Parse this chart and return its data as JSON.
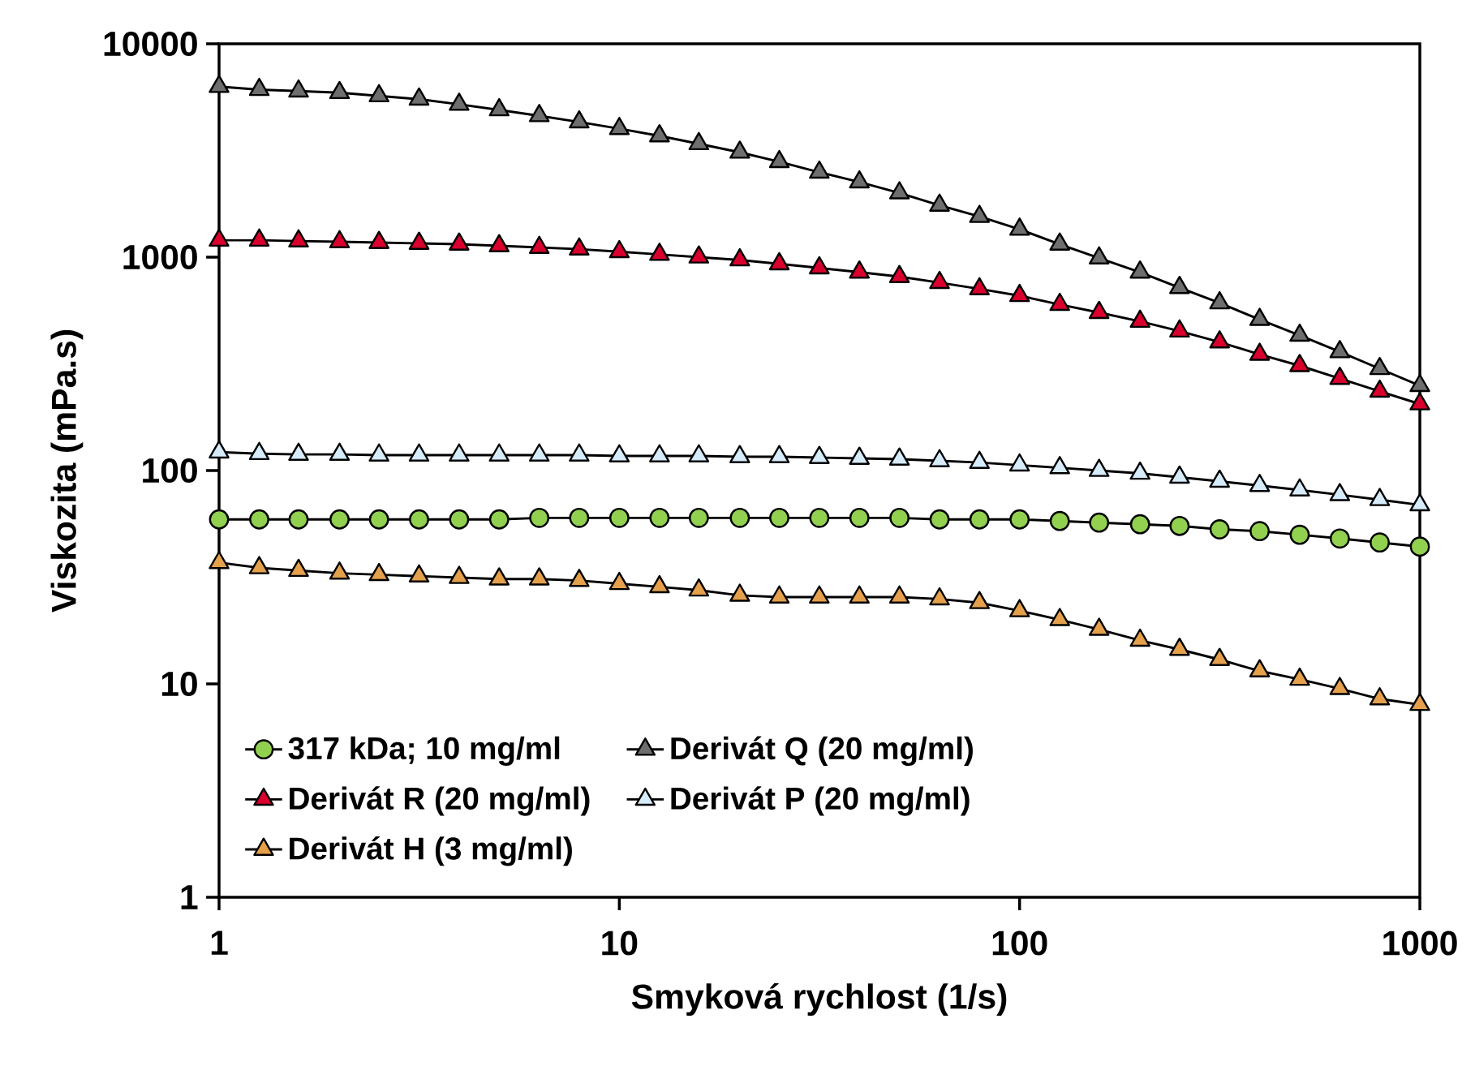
{
  "chart_data": {
    "type": "line",
    "xlabel": "Smyková rychlost (1/s)",
    "ylabel": "Viskozita (mPa.s)",
    "log": "xy",
    "grid": false,
    "legend": "bottom left",
    "xlim": [
      1,
      1000
    ],
    "ylim": [
      1,
      10000
    ],
    "xticks": [
      1,
      10,
      100,
      1000
    ],
    "yticks": [
      1,
      10,
      100,
      1000,
      10000
    ],
    "x": [
      1,
      1.26,
      1.58,
      2,
      2.51,
      3.16,
      3.98,
      5.01,
      6.31,
      7.94,
      10,
      12.6,
      15.8,
      20,
      25.1,
      31.6,
      39.8,
      50.1,
      63.1,
      79.4,
      100,
      126,
      158,
      200,
      251,
      316,
      398,
      501,
      631,
      794,
      1000
    ],
    "series": [
      {
        "name": "317 kDa; 10 mg/ml",
        "color": "#92d050",
        "marker": "circle",
        "values": [
          59,
          59,
          59,
          59,
          59,
          59,
          59,
          59,
          60,
          60,
          60,
          60,
          60,
          60,
          60,
          60,
          60,
          60,
          59,
          59,
          59,
          58,
          57,
          56,
          55,
          53,
          52,
          50,
          48,
          46,
          44
        ]
      },
      {
        "name": "Derivát Q (20 mg/ml)",
        "color": "#6e6e6e",
        "marker": "triangle",
        "values": [
          6300,
          6100,
          6000,
          5900,
          5700,
          5500,
          5200,
          4900,
          4600,
          4300,
          4000,
          3700,
          3400,
          3100,
          2800,
          2500,
          2250,
          2000,
          1750,
          1550,
          1350,
          1150,
          990,
          850,
          720,
          610,
          510,
          430,
          360,
          300,
          250
        ]
      },
      {
        "name": "Derivát R (20 mg/ml)",
        "color": "#d9002d",
        "marker": "triangle",
        "values": [
          1200,
          1200,
          1190,
          1180,
          1170,
          1160,
          1150,
          1130,
          1110,
          1090,
          1060,
          1030,
          1000,
          970,
          930,
          890,
          850,
          810,
          760,
          710,
          660,
          600,
          550,
          500,
          450,
          400,
          350,
          310,
          270,
          235,
          205
        ]
      },
      {
        "name": "Derivát P (20 mg/ml)",
        "color": "#d6ecfa",
        "marker": "triangle",
        "values": [
          122,
          120,
          119,
          119,
          118,
          118,
          118,
          118,
          118,
          118,
          117,
          117,
          117,
          116,
          116,
          115,
          114,
          113,
          111,
          109,
          106,
          103,
          100,
          97,
          93,
          89,
          85,
          81,
          77,
          73,
          69
        ]
      },
      {
        "name": "Derivát H (3 mg/ml)",
        "color": "#e5a04c",
        "marker": "triangle",
        "values": [
          37,
          35,
          34,
          33,
          32.5,
          32,
          31.5,
          31,
          31,
          30.5,
          29.5,
          28.5,
          27.5,
          26,
          25.5,
          25.5,
          25.5,
          25.5,
          25,
          24,
          22,
          20,
          18,
          16,
          14.5,
          13,
          11.5,
          10.5,
          9.5,
          8.5,
          8
        ]
      }
    ]
  }
}
